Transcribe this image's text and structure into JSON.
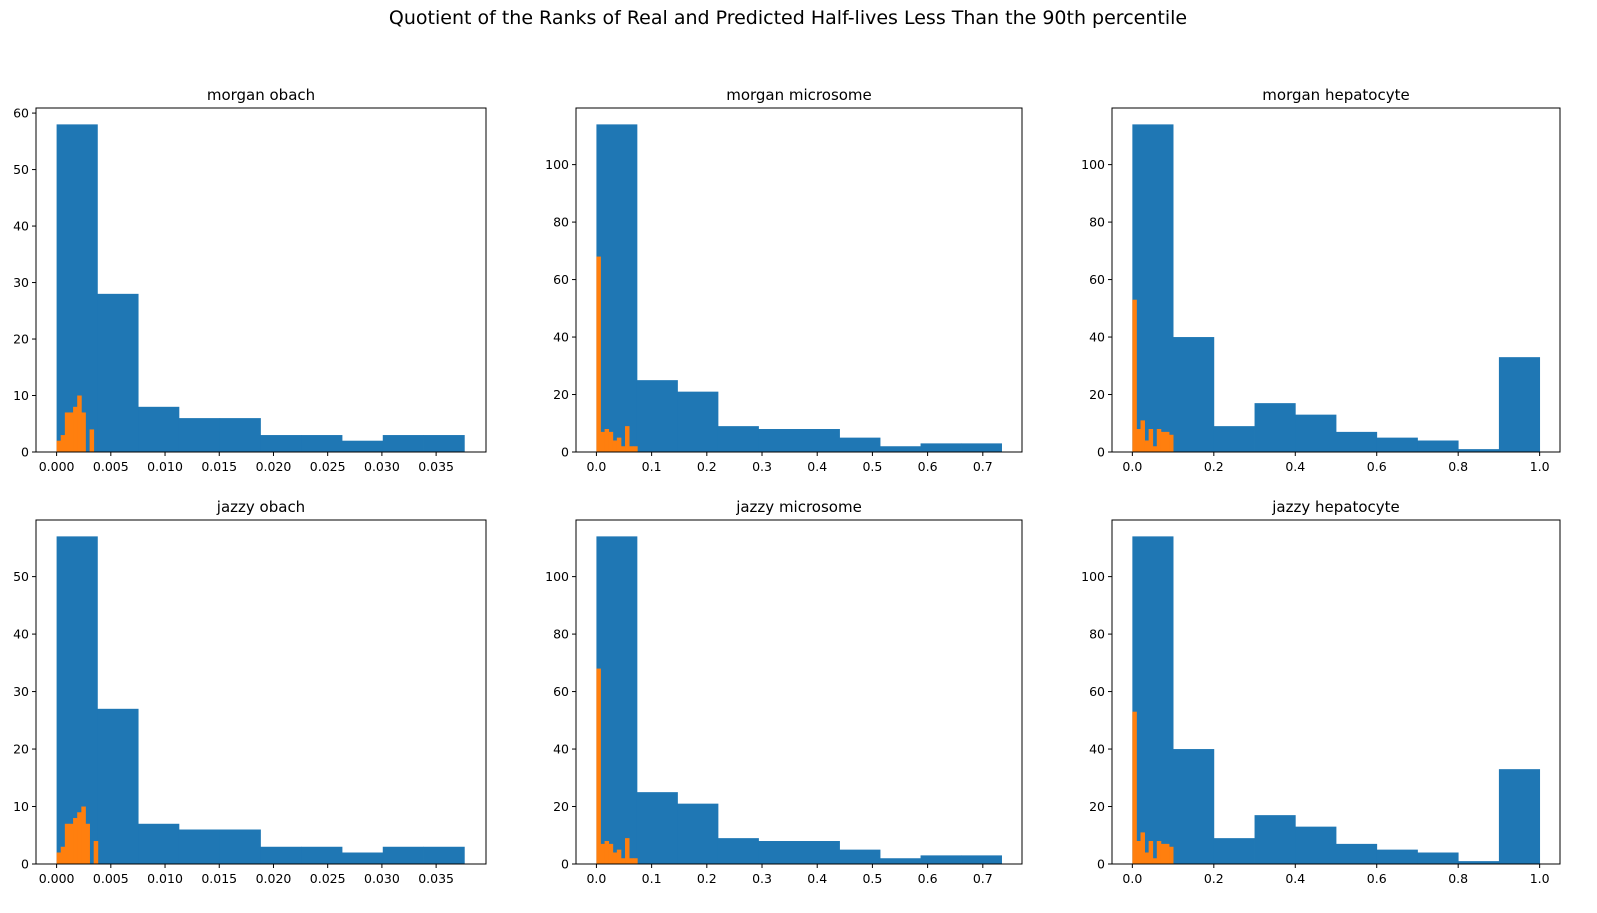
{
  "figure": {
    "suptitle": "Quotient of the Ranks of Real and Predicted Half-lives Less Than the 90th percentile"
  },
  "colors": {
    "series1": "#1f77b4",
    "series2": "#ff7f0e",
    "axes": "#000000",
    "background": "#ffffff"
  },
  "chart_data": [
    {
      "type": "bar",
      "title": "morgan obach",
      "xlim": [
        -0.0019,
        0.0396
      ],
      "ylim": [
        0,
        60.9
      ],
      "xticks": [
        0.0,
        0.005,
        0.01,
        0.015,
        0.02,
        0.025,
        0.03,
        0.035
      ],
      "xtick_labels": [
        "0.000",
        "0.005",
        "0.010",
        "0.015",
        "0.020",
        "0.025",
        "0.030",
        "0.035"
      ],
      "yticks": [
        0,
        10,
        20,
        30,
        40,
        50,
        60
      ],
      "ytick_labels": [
        "0",
        "10",
        "20",
        "30",
        "40",
        "50",
        "60"
      ],
      "series": [
        {
          "color": "#1f77b4",
          "bins": [
            0.0,
            0.00376,
            0.00752,
            0.01128,
            0.01504,
            0.0188,
            0.02256,
            0.02632,
            0.03008,
            0.03384,
            0.0376
          ],
          "values": [
            58,
            28,
            8,
            6,
            6,
            3,
            3,
            2,
            3,
            3
          ]
        },
        {
          "color": "#ff7f0e",
          "bins": [
            0.0,
            0.00038,
            0.00076,
            0.00114,
            0.00152,
            0.0019,
            0.00228,
            0.00266,
            0.00304,
            0.00342,
            0.0038
          ],
          "values": [
            2,
            3,
            7,
            7,
            8,
            10,
            7,
            0,
            4,
            0
          ]
        }
      ]
    },
    {
      "type": "bar",
      "title": "morgan microsome",
      "xlim": [
        -0.037,
        0.771
      ],
      "ylim": [
        0,
        119.7
      ],
      "xticks": [
        0.0,
        0.1,
        0.2,
        0.3,
        0.4,
        0.5,
        0.6,
        0.7
      ],
      "xtick_labels": [
        "0.0",
        "0.1",
        "0.2",
        "0.3",
        "0.4",
        "0.5",
        "0.6",
        "0.7"
      ],
      "yticks": [
        0,
        20,
        40,
        60,
        80,
        100
      ],
      "ytick_labels": [
        "0",
        "20",
        "40",
        "60",
        "80",
        "100"
      ],
      "series": [
        {
          "color": "#1f77b4",
          "bins": [
            0.0,
            0.0734,
            0.1468,
            0.2202,
            0.2936,
            0.367,
            0.4404,
            0.5138,
            0.5872,
            0.6606,
            0.734
          ],
          "values": [
            114,
            25,
            21,
            9,
            8,
            8,
            5,
            2,
            3,
            3
          ]
        },
        {
          "color": "#ff7f0e",
          "bins": [
            0.0,
            0.0074,
            0.0148,
            0.0222,
            0.0296,
            0.037,
            0.0444,
            0.0518,
            0.0592,
            0.0666,
            0.074
          ],
          "values": [
            68,
            7,
            8,
            7,
            4,
            5,
            2,
            9,
            2,
            2
          ]
        }
      ]
    },
    {
      "type": "bar",
      "title": "morgan hepatocyte",
      "xlim": [
        -0.05,
        1.05
      ],
      "ylim": [
        0,
        119.7
      ],
      "xticks": [
        0.0,
        0.2,
        0.4,
        0.6,
        0.8,
        1.0
      ],
      "xtick_labels": [
        "0.0",
        "0.2",
        "0.4",
        "0.6",
        "0.8",
        "1.0"
      ],
      "yticks": [
        0,
        20,
        40,
        60,
        80,
        100
      ],
      "ytick_labels": [
        "0",
        "20",
        "40",
        "60",
        "80",
        "100"
      ],
      "series": [
        {
          "color": "#1f77b4",
          "bins": [
            0.0,
            0.1,
            0.2,
            0.3,
            0.4,
            0.5,
            0.6,
            0.7,
            0.8,
            0.9,
            1.0
          ],
          "values": [
            114,
            40,
            9,
            17,
            13,
            7,
            5,
            4,
            1,
            33
          ]
        },
        {
          "color": "#ff7f0e",
          "bins": [
            0.0,
            0.01,
            0.02,
            0.03,
            0.04,
            0.05,
            0.06,
            0.07,
            0.08,
            0.09,
            0.1
          ],
          "values": [
            53,
            8,
            11,
            4,
            8,
            2,
            8,
            7,
            7,
            6
          ]
        }
      ]
    },
    {
      "type": "bar",
      "title": "jazzy obach",
      "xlim": [
        -0.0019,
        0.0396
      ],
      "ylim": [
        0,
        59.85
      ],
      "xticks": [
        0.0,
        0.005,
        0.01,
        0.015,
        0.02,
        0.025,
        0.03,
        0.035
      ],
      "xtick_labels": [
        "0.000",
        "0.005",
        "0.010",
        "0.015",
        "0.020",
        "0.025",
        "0.030",
        "0.035"
      ],
      "yticks": [
        0,
        10,
        20,
        30,
        40,
        50
      ],
      "ytick_labels": [
        "0",
        "10",
        "20",
        "30",
        "40",
        "50"
      ],
      "series": [
        {
          "color": "#1f77b4",
          "bins": [
            0.0,
            0.00376,
            0.00752,
            0.01128,
            0.01504,
            0.0188,
            0.02256,
            0.02632,
            0.03008,
            0.03384,
            0.0376
          ],
          "values": [
            57,
            27,
            7,
            6,
            6,
            3,
            3,
            2,
            3,
            3
          ]
        },
        {
          "color": "#ff7f0e",
          "bins": [
            0.0,
            0.00038,
            0.00076,
            0.00114,
            0.00152,
            0.0019,
            0.00228,
            0.00266,
            0.00304,
            0.00342,
            0.0038
          ],
          "values": [
            2,
            3,
            7,
            7,
            8,
            9,
            10,
            7,
            0,
            4
          ]
        }
      ]
    },
    {
      "type": "bar",
      "title": "jazzy microsome",
      "xlim": [
        -0.037,
        0.771
      ],
      "ylim": [
        0,
        119.7
      ],
      "xticks": [
        0.0,
        0.1,
        0.2,
        0.3,
        0.4,
        0.5,
        0.6,
        0.7
      ],
      "xtick_labels": [
        "0.0",
        "0.1",
        "0.2",
        "0.3",
        "0.4",
        "0.5",
        "0.6",
        "0.7"
      ],
      "yticks": [
        0,
        20,
        40,
        60,
        80,
        100
      ],
      "ytick_labels": [
        "0",
        "20",
        "40",
        "60",
        "80",
        "100"
      ],
      "series": [
        {
          "color": "#1f77b4",
          "bins": [
            0.0,
            0.0734,
            0.1468,
            0.2202,
            0.2936,
            0.367,
            0.4404,
            0.5138,
            0.5872,
            0.6606,
            0.734
          ],
          "values": [
            114,
            25,
            21,
            9,
            8,
            8,
            5,
            2,
            3,
            3
          ]
        },
        {
          "color": "#ff7f0e",
          "bins": [
            0.0,
            0.0074,
            0.0148,
            0.0222,
            0.0296,
            0.037,
            0.0444,
            0.0518,
            0.0592,
            0.0666,
            0.074
          ],
          "values": [
            68,
            7,
            8,
            7,
            4,
            5,
            2,
            9,
            2,
            2
          ]
        }
      ]
    },
    {
      "type": "bar",
      "title": "jazzy hepatocyte",
      "xlim": [
        -0.05,
        1.05
      ],
      "ylim": [
        0,
        119.7
      ],
      "xticks": [
        0.0,
        0.2,
        0.4,
        0.6,
        0.8,
        1.0
      ],
      "xtick_labels": [
        "0.0",
        "0.2",
        "0.4",
        "0.6",
        "0.8",
        "1.0"
      ],
      "yticks": [
        0,
        20,
        40,
        60,
        80,
        100
      ],
      "ytick_labels": [
        "0",
        "20",
        "40",
        "60",
        "80",
        "100"
      ],
      "series": [
        {
          "color": "#1f77b4",
          "bins": [
            0.0,
            0.1,
            0.2,
            0.3,
            0.4,
            0.5,
            0.6,
            0.7,
            0.8,
            0.9,
            1.0
          ],
          "values": [
            114,
            40,
            9,
            17,
            13,
            7,
            5,
            4,
            1,
            33
          ]
        },
        {
          "color": "#ff7f0e",
          "bins": [
            0.0,
            0.01,
            0.02,
            0.03,
            0.04,
            0.05,
            0.06,
            0.07,
            0.08,
            0.09,
            0.1
          ],
          "values": [
            53,
            8,
            11,
            4,
            8,
            2,
            8,
            7,
            7,
            6
          ]
        }
      ]
    }
  ]
}
